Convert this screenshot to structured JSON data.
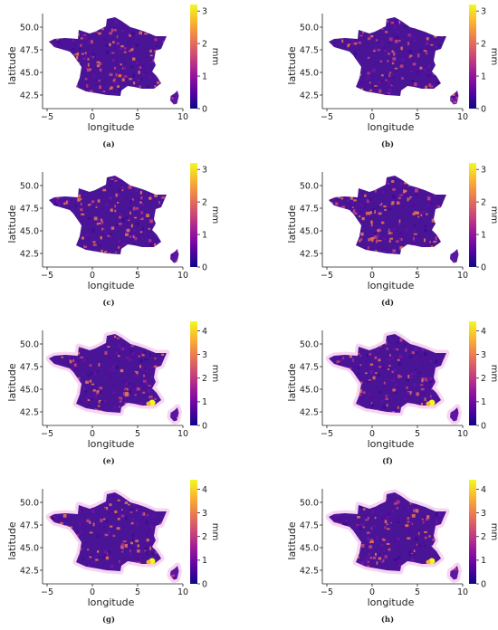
{
  "colors": {
    "colormap": [
      "#0d0887",
      "#5b02a3",
      "#9a179b",
      "#cb4678",
      "#eb7852",
      "#fbb32f",
      "#f0f921"
    ],
    "halo": "#f7d4f1",
    "axis": "#222222",
    "background": "#ffffff"
  },
  "chart_data": [
    {
      "type": "heatmap",
      "panel_label": "(a)",
      "xlabel": "longitude",
      "ylabel": "latitude",
      "colorbar_label": "mm",
      "xlim": [
        -5.5,
        10
      ],
      "ylim": [
        41,
        51.5
      ],
      "x_ticks": [
        -5,
        0,
        5,
        10
      ],
      "y_ticks": [
        42.5,
        45.0,
        47.5,
        50.0
      ],
      "colorbar_range": [
        0,
        3.2
      ],
      "colorbar_ticks": [
        0,
        1,
        2,
        3
      ],
      "halo": false,
      "hotspot": null
    },
    {
      "type": "heatmap",
      "panel_label": "(b)",
      "xlabel": "longitude",
      "ylabel": "latitude",
      "colorbar_label": "mm",
      "xlim": [
        -5.5,
        10
      ],
      "ylim": [
        41,
        51.5
      ],
      "x_ticks": [
        -5,
        0,
        5,
        10
      ],
      "y_ticks": [
        42.5,
        45.0,
        47.5,
        50.0
      ],
      "colorbar_range": [
        0,
        3.2
      ],
      "colorbar_ticks": [
        0,
        1,
        2,
        3
      ],
      "halo": false,
      "hotspot": null
    },
    {
      "type": "heatmap",
      "panel_label": "(c)",
      "xlabel": "longitude",
      "ylabel": "latitude",
      "colorbar_label": "mm",
      "xlim": [
        -5.5,
        10
      ],
      "ylim": [
        41,
        51.5
      ],
      "x_ticks": [
        -5,
        0,
        5,
        10
      ],
      "y_ticks": [
        42.5,
        45.0,
        47.5,
        50.0
      ],
      "colorbar_range": [
        0,
        3.2
      ],
      "colorbar_ticks": [
        0,
        1,
        2,
        3
      ],
      "halo": false,
      "hotspot": null
    },
    {
      "type": "heatmap",
      "panel_label": "(d)",
      "xlabel": "longitude",
      "ylabel": "latitude",
      "colorbar_label": "mm",
      "xlim": [
        -5.5,
        10
      ],
      "ylim": [
        41,
        51.5
      ],
      "x_ticks": [
        -5,
        0,
        5,
        10
      ],
      "y_ticks": [
        42.5,
        45.0,
        47.5,
        50.0
      ],
      "colorbar_range": [
        0,
        3.2
      ],
      "colorbar_ticks": [
        0,
        1,
        2,
        3
      ],
      "halo": false,
      "hotspot": null
    },
    {
      "type": "heatmap",
      "panel_label": "(e)",
      "xlabel": "longitude",
      "ylabel": "latitude",
      "colorbar_label": "mm",
      "xlim": [
        -5.5,
        10
      ],
      "ylim": [
        41,
        51.5
      ],
      "x_ticks": [
        -5,
        0,
        5,
        10
      ],
      "y_ticks": [
        42.5,
        45.0,
        47.5,
        50.0
      ],
      "colorbar_range": [
        0,
        4.4
      ],
      "colorbar_ticks": [
        0,
        1,
        2,
        3,
        4
      ],
      "halo": true,
      "hotspot": [
        6.6,
        43.5
      ]
    },
    {
      "type": "heatmap",
      "panel_label": "(f)",
      "xlabel": "longitude",
      "ylabel": "latitude",
      "colorbar_label": "mm",
      "xlim": [
        -5.5,
        10
      ],
      "ylim": [
        41,
        51.5
      ],
      "x_ticks": [
        -5,
        0,
        5,
        10
      ],
      "y_ticks": [
        42.5,
        45.0,
        47.5,
        50.0
      ],
      "colorbar_range": [
        0,
        4.4
      ],
      "colorbar_ticks": [
        0,
        1,
        2,
        3,
        4
      ],
      "halo": true,
      "hotspot": [
        6.6,
        43.5
      ]
    },
    {
      "type": "heatmap",
      "panel_label": "(g)",
      "xlabel": "longitude",
      "ylabel": "latitude",
      "colorbar_label": "mm",
      "xlim": [
        -5.5,
        10
      ],
      "ylim": [
        41,
        51.5
      ],
      "x_ticks": [
        -5,
        0,
        5,
        10
      ],
      "y_ticks": [
        42.5,
        45.0,
        47.5,
        50.0
      ],
      "colorbar_range": [
        0,
        4.4
      ],
      "colorbar_ticks": [
        0,
        1,
        2,
        3,
        4
      ],
      "halo": true,
      "hotspot": [
        6.6,
        43.5
      ]
    },
    {
      "type": "heatmap",
      "panel_label": "(h)",
      "xlabel": "longitude",
      "ylabel": "latitude",
      "colorbar_label": "mm",
      "xlim": [
        -5.5,
        10
      ],
      "ylim": [
        41,
        51.5
      ],
      "x_ticks": [
        -5,
        0,
        5,
        10
      ],
      "y_ticks": [
        42.5,
        45.0,
        47.5,
        50.0
      ],
      "colorbar_range": [
        0,
        4.4
      ],
      "colorbar_ticks": [
        0,
        1,
        2,
        3,
        4
      ],
      "halo": true,
      "hotspot": [
        6.6,
        43.5
      ]
    }
  ]
}
